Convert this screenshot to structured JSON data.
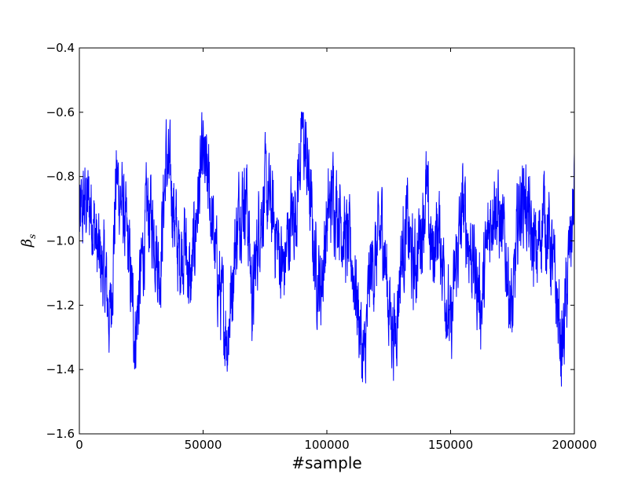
{
  "chart_data": {
    "type": "line",
    "title": "",
    "xlabel": "#sample",
    "ylabel": "β_s",
    "ylabel_symbol": "β",
    "ylabel_subscript": "s",
    "xlim": [
      0,
      200000
    ],
    "ylim": [
      -1.6,
      -0.4
    ],
    "xticks": [
      0,
      50000,
      100000,
      150000,
      200000
    ],
    "xtick_labels": [
      "0",
      "50000",
      "100000",
      "150000",
      "200000"
    ],
    "yticks": [
      -1.6,
      -1.4,
      -1.2,
      -1.0,
      -0.8,
      -0.6,
      -0.4
    ],
    "ytick_labels": [
      "−1.6",
      "−1.4",
      "−1.2",
      "−1.0",
      "−0.8",
      "−0.6",
      "−0.4"
    ],
    "grid": false,
    "legend": "none",
    "series": [
      {
        "color": "#0000ff",
        "x": [
          0,
          2500,
          5000,
          7500,
          10000,
          12500,
          15000,
          17500,
          20000,
          22500,
          25000,
          27500,
          30000,
          32500,
          35000,
          37500,
          40000,
          42500,
          45000,
          47500,
          50000,
          52500,
          55000,
          57500,
          60000,
          62500,
          65000,
          67500,
          70000,
          72500,
          75000,
          77500,
          80000,
          82500,
          85000,
          87500,
          90000,
          92500,
          95000,
          97500,
          100000,
          102500,
          105000,
          107500,
          110000,
          112500,
          115000,
          117500,
          120000,
          122500,
          125000,
          127500,
          130000,
          132500,
          135000,
          137500,
          140000,
          142500,
          145000,
          147500,
          150000,
          152500,
          155000,
          157500,
          160000,
          162500,
          165000,
          167500,
          170000,
          172500,
          175000,
          177500,
          180000,
          182500,
          185000,
          187500,
          190000,
          192500,
          195000,
          197500,
          200000
        ],
        "y": [
          -0.95,
          -0.88,
          -0.9,
          -1.05,
          -1.1,
          -1.25,
          -0.8,
          -0.9,
          -1.05,
          -1.3,
          -1.1,
          -0.9,
          -0.95,
          -1.1,
          -0.75,
          -0.85,
          -1.05,
          -1.0,
          -1.15,
          -0.9,
          -0.75,
          -0.85,
          -1.05,
          -1.2,
          -1.3,
          -1.05,
          -0.88,
          -0.85,
          -1.2,
          -0.95,
          -0.85,
          -0.9,
          -1.0,
          -1.1,
          -0.95,
          -0.9,
          -0.65,
          -0.8,
          -1.05,
          -1.15,
          -0.95,
          -0.85,
          -0.9,
          -1.0,
          -1.05,
          -1.2,
          -1.4,
          -1.1,
          -1.05,
          -0.95,
          -1.2,
          -1.3,
          -1.05,
          -0.95,
          -1.1,
          -1.0,
          -0.85,
          -1.05,
          -0.95,
          -1.1,
          -1.3,
          -1.05,
          -0.9,
          -1.0,
          -1.1,
          -1.2,
          -1.0,
          -0.85,
          -0.95,
          -1.05,
          -1.25,
          -0.9,
          -0.85,
          -1.0,
          -1.05,
          -0.9,
          -1.0,
          -1.15,
          -1.35,
          -1.1,
          -0.85
        ]
      }
    ]
  }
}
